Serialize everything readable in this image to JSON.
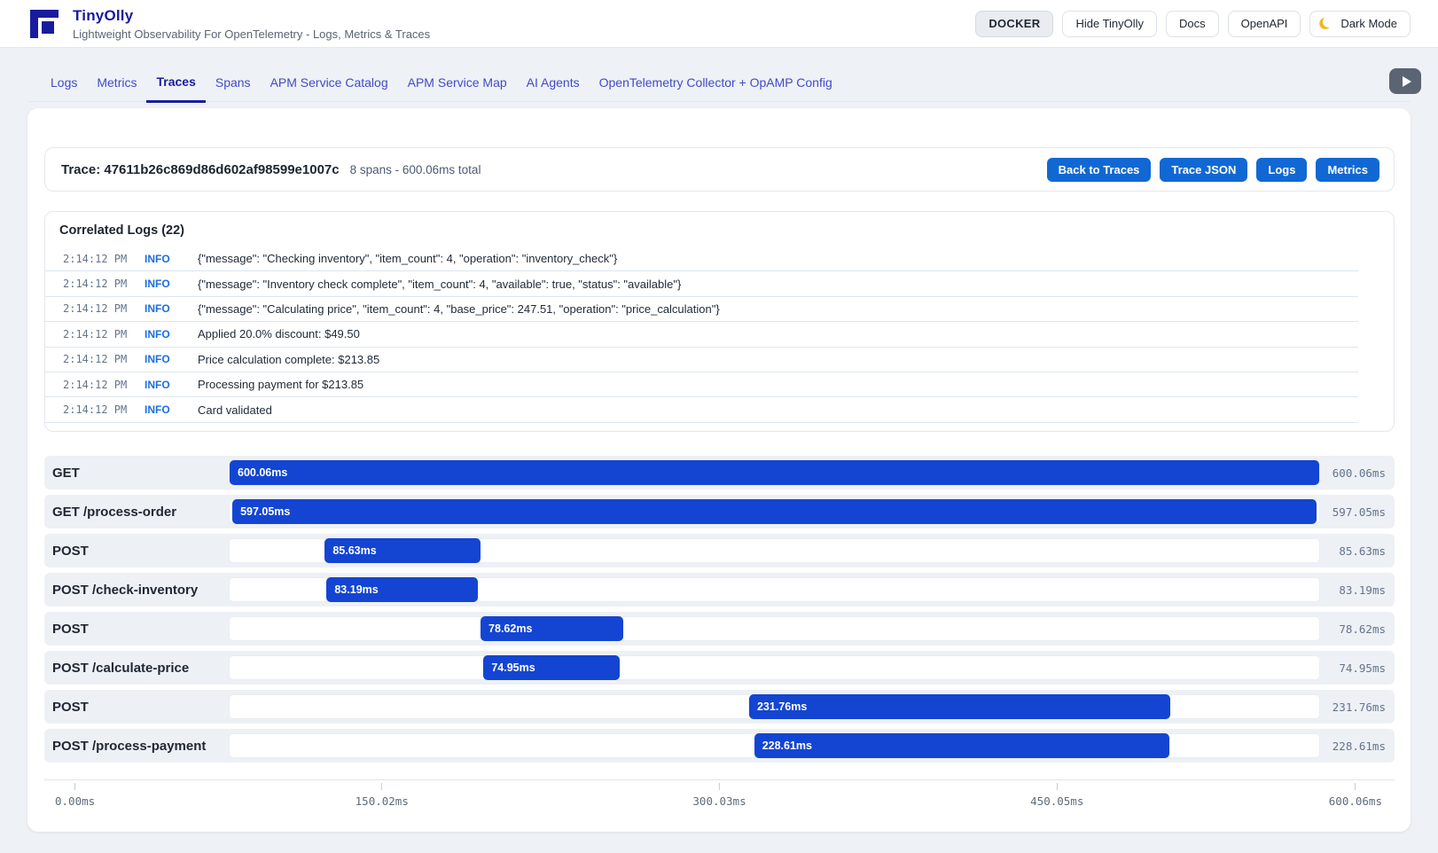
{
  "header": {
    "title": "TinyOlly",
    "subtitle": "Lightweight Observability For OpenTelemetry - Logs, Metrics & Traces",
    "actions": [
      {
        "label": "DOCKER",
        "style": "solid",
        "icon": null
      },
      {
        "label": "Hide TinyOlly",
        "style": "outline",
        "icon": null
      },
      {
        "label": "Docs",
        "style": "outline",
        "icon": null
      },
      {
        "label": "OpenAPI",
        "style": "outline",
        "icon": null
      },
      {
        "label": "Dark Mode",
        "style": "outline",
        "icon": "moon"
      }
    ]
  },
  "tabs": [
    {
      "label": "Logs",
      "active": false
    },
    {
      "label": "Metrics",
      "active": false
    },
    {
      "label": "Traces",
      "active": true
    },
    {
      "label": "Spans",
      "active": false
    },
    {
      "label": "APM Service Catalog",
      "active": false
    },
    {
      "label": "APM Service Map",
      "active": false
    },
    {
      "label": "AI Agents",
      "active": false
    },
    {
      "label": "OpenTelemetry Collector + OpAMP Config",
      "active": false
    }
  ],
  "trace": {
    "title": "Trace: 47611b26c869d86d602af98599e1007c",
    "summary": "8 spans - 600.06ms total",
    "buttons": [
      "Back to Traces",
      "Trace JSON",
      "Logs",
      "Metrics"
    ]
  },
  "logs": {
    "title": "Correlated Logs (22)",
    "entries": [
      {
        "time": "2:14:12 PM",
        "level": "INFO",
        "message": "{\"message\": \"Checking inventory\", \"item_count\": 4, \"operation\": \"inventory_check\"}"
      },
      {
        "time": "2:14:12 PM",
        "level": "INFO",
        "message": "{\"message\": \"Inventory check complete\", \"item_count\": 4, \"available\": true, \"status\": \"available\"}"
      },
      {
        "time": "2:14:12 PM",
        "level": "INFO",
        "message": "{\"message\": \"Calculating price\", \"item_count\": 4, \"base_price\": 247.51, \"operation\": \"price_calculation\"}"
      },
      {
        "time": "2:14:12 PM",
        "level": "INFO",
        "message": "Applied 20.0% discount: $49.50"
      },
      {
        "time": "2:14:12 PM",
        "level": "INFO",
        "message": "Price calculation complete: $213.85"
      },
      {
        "time": "2:14:12 PM",
        "level": "INFO",
        "message": "Processing payment for $213.85"
      },
      {
        "time": "2:14:12 PM",
        "level": "INFO",
        "message": "Card validated"
      }
    ]
  },
  "waterfall": {
    "total_ms": 600.06,
    "spans": [
      {
        "name": "GET",
        "start_ms": 0.0,
        "duration_ms": 600.06,
        "bar_label": "600.06ms",
        "duration_label": "600.06ms"
      },
      {
        "name": "GET /process-order",
        "start_ms": 1.5,
        "duration_ms": 597.05,
        "bar_label": "597.05ms",
        "duration_label": "597.05ms"
      },
      {
        "name": "POST",
        "start_ms": 52.4,
        "duration_ms": 85.63,
        "bar_label": "85.63ms",
        "duration_label": "85.63ms"
      },
      {
        "name": "POST /check-inventory",
        "start_ms": 53.4,
        "duration_ms": 83.19,
        "bar_label": "83.19ms",
        "duration_label": "83.19ms"
      },
      {
        "name": "POST",
        "start_ms": 138.2,
        "duration_ms": 78.62,
        "bar_label": "78.62ms",
        "duration_label": "78.62ms"
      },
      {
        "name": "POST /calculate-price",
        "start_ms": 139.8,
        "duration_ms": 74.95,
        "bar_label": "74.95ms",
        "duration_label": "74.95ms"
      },
      {
        "name": "POST",
        "start_ms": 286.1,
        "duration_ms": 231.76,
        "bar_label": "231.76ms",
        "duration_label": "231.76ms"
      },
      {
        "name": "POST /process-payment",
        "start_ms": 288.9,
        "duration_ms": 228.61,
        "bar_label": "228.61ms",
        "duration_label": "228.61ms"
      }
    ],
    "axis_labels": [
      "0.00ms",
      "150.02ms",
      "300.03ms",
      "450.05ms",
      "600.06ms"
    ]
  },
  "colors": {
    "brand_navy": "#191b9e",
    "tab_inactive": "#414bc7",
    "button_blue": "#1168d3",
    "bar_blue": "#1345d2",
    "info_blue": "#1a6ee0",
    "page_bg": "#eef1f6",
    "row_bg": "#edf0f5",
    "muted_text": "#64748b"
  }
}
